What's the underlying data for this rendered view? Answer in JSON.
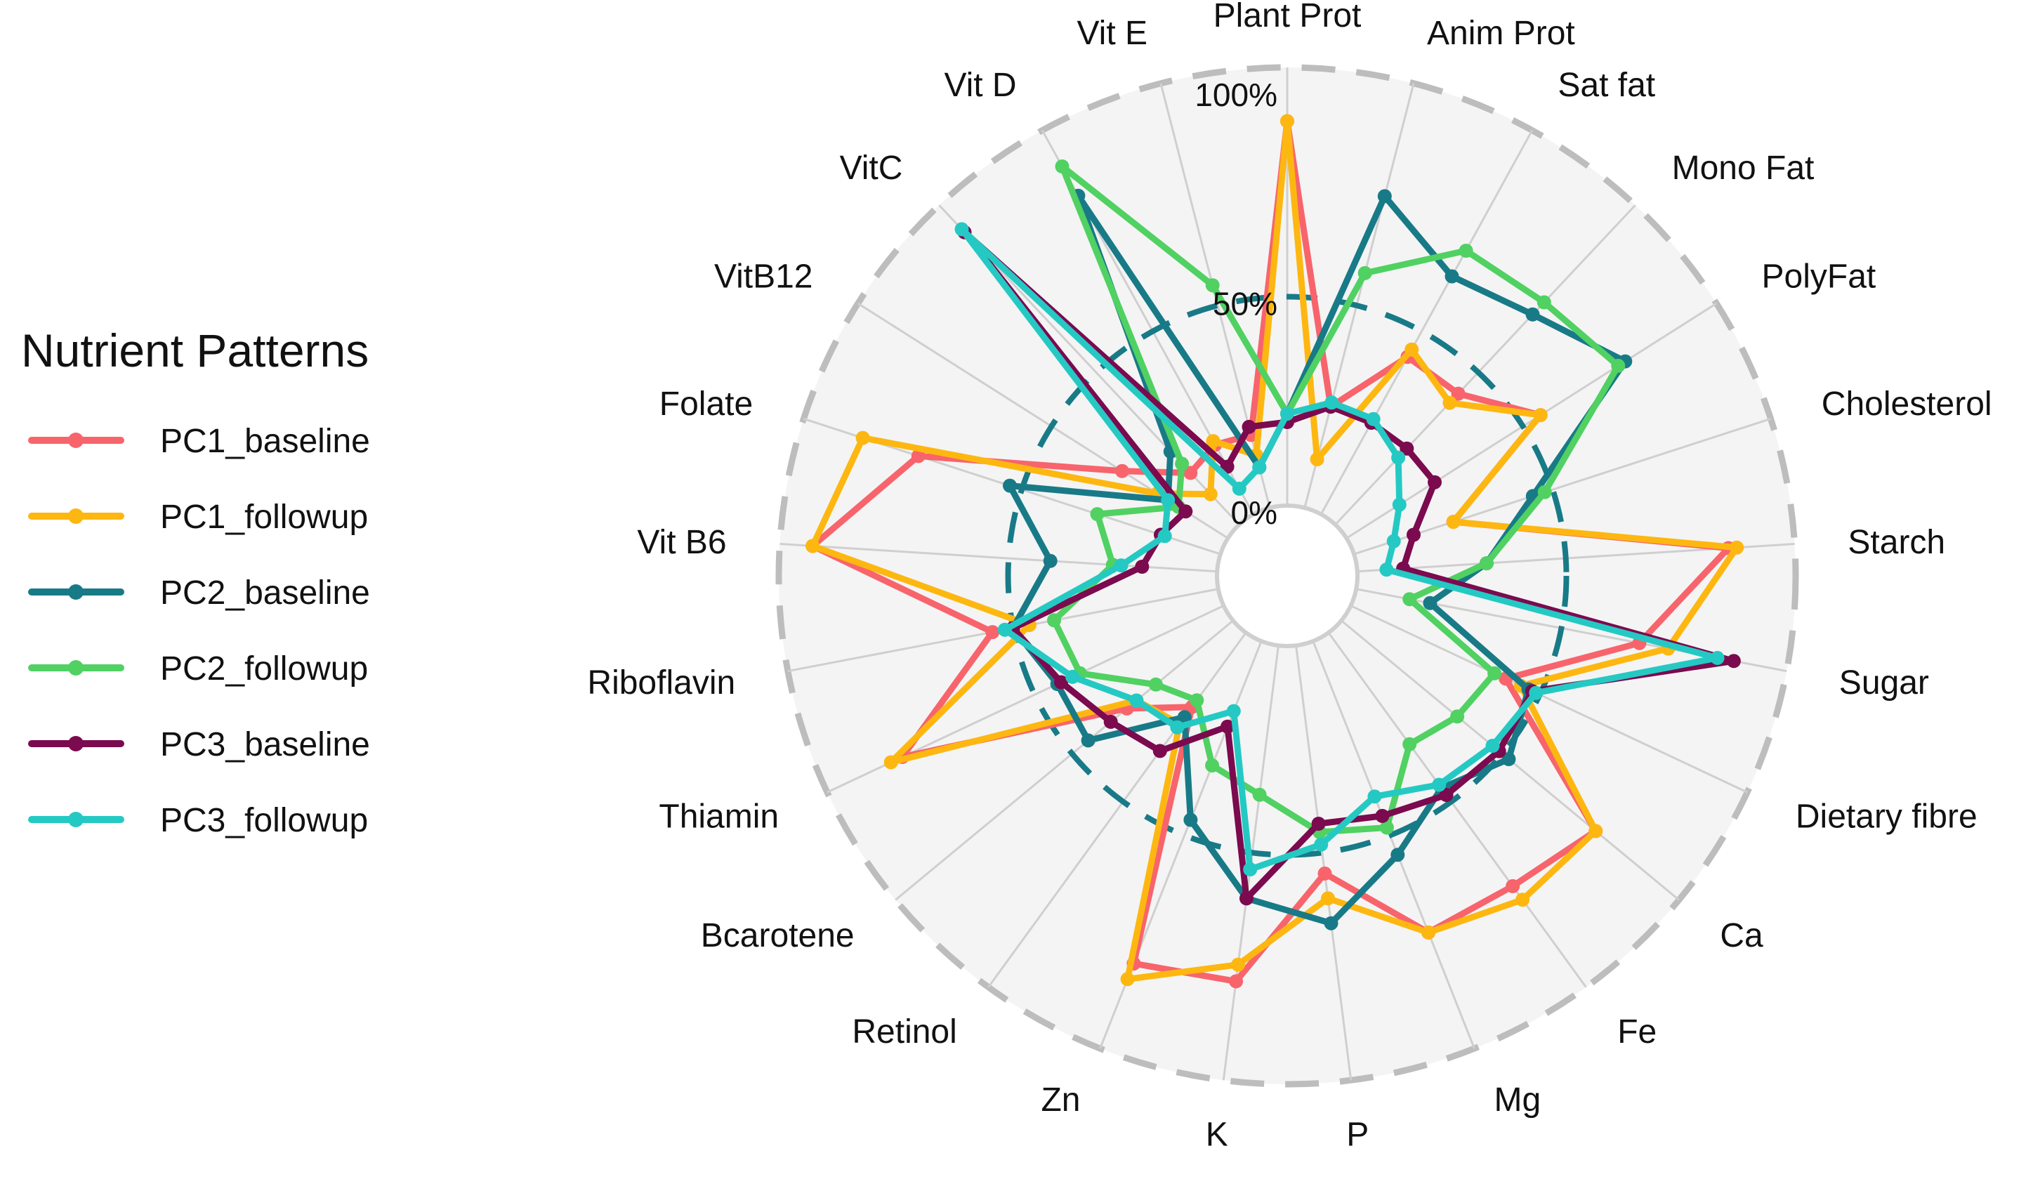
{
  "chart_data": {
    "type": "radar",
    "legend_title": "Nutrient Patterns",
    "legend_position": "left",
    "categories": [
      "Plant Prot",
      "Anim Prot",
      "Sat fat",
      "Mono Fat",
      "PolyFat",
      "Cholesterol",
      "Starch",
      "Sugar",
      "Dietary fibre",
      "Ca",
      "Fe",
      "Mg",
      "P",
      "K",
      "Zn",
      "Retinol",
      "Bcarotene",
      "Thiamin",
      "Riboflavin",
      "Vit B6",
      "Folate",
      "VitB12",
      "VitC",
      "Vit D",
      "Vit E"
    ],
    "radial_ticks": [
      "0%",
      "50%",
      "100%"
    ],
    "grid": true,
    "series": [
      {
        "name": "PC1_baseline",
        "color": "#F8646C",
        "values": [
          0.92,
          0.25,
          0.43,
          0.43,
          0.55,
          0.25,
          0.89,
          0.69,
          0.41,
          0.79,
          0.75,
          0.75,
          0.55,
          0.81,
          0.83,
          0.22,
          0.33,
          0.85,
          0.55,
          0.97,
          0.76,
          0.3,
          0.17,
          0.19,
          0.18
        ]
      },
      {
        "name": "PC1_followup",
        "color": "#FDB710",
        "values": [
          0.92,
          0.12,
          0.45,
          0.4,
          0.55,
          0.25,
          0.91,
          0.76,
          0.45,
          0.79,
          0.79,
          0.75,
          0.61,
          0.77,
          0.87,
          0.27,
          0.3,
          0.88,
          0.46,
          0.97,
          0.9,
          0.2,
          0.1,
          0.2,
          0.13
        ]
      },
      {
        "name": "PC2_baseline",
        "color": "#187A87",
        "values": [
          0.22,
          0.77,
          0.65,
          0.69,
          0.79,
          0.45,
          0.31,
          0.18,
          0.47,
          0.52,
          0.46,
          0.55,
          0.67,
          0.61,
          0.46,
          0.25,
          0.45,
          0.44,
          0.5,
          0.4,
          0.53,
          0.17,
          0.24,
          0.87,
          0.1
        ]
      },
      {
        "name": "PC2_followup",
        "color": "#50D162",
        "values": [
          0.22,
          0.58,
          0.72,
          0.73,
          0.77,
          0.48,
          0.31,
          0.13,
          0.38,
          0.36,
          0.33,
          0.48,
          0.45,
          0.36,
          0.32,
          0.2,
          0.24,
          0.38,
          0.4,
          0.25,
          0.31,
          0.14,
          0.2,
          0.95,
          0.55
        ]
      },
      {
        "name": "PC3_baseline",
        "color": "#7B0A4F",
        "values": [
          0.2,
          0.25,
          0.25,
          0.25,
          0.25,
          0.15,
          0.11,
          0.92,
          0.48,
          0.49,
          0.48,
          0.45,
          0.43,
          0.61,
          0.22,
          0.35,
          0.38,
          0.43,
          0.5,
          0.18,
          0.15,
          0.12,
          0.96,
          0.13,
          0.2
        ]
      },
      {
        "name": "PC3_followup",
        "color": "#25C9C3",
        "values": [
          0.22,
          0.26,
          0.26,
          0.22,
          0.15,
          0.1,
          0.07,
          0.88,
          0.49,
          0.47,
          0.45,
          0.4,
          0.48,
          0.54,
          0.18,
          0.28,
          0.3,
          0.4,
          0.52,
          0.23,
          0.14,
          0.17,
          0.97,
          0.07,
          0.1
        ]
      }
    ]
  }
}
